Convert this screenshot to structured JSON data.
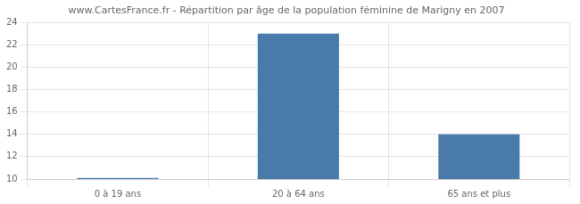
{
  "chart_data": {
    "type": "bar",
    "title": "www.CartesFrance.fr - Répartition par âge de la population féminine de Marigny en 2007",
    "categories": [
      "0 à 19 ans",
      "20 à 64 ans",
      "65 ans et plus"
    ],
    "values": [
      10.1,
      23,
      14
    ],
    "color": "#4a7aaa",
    "ylim": [
      10,
      24
    ],
    "yticks": [
      10,
      12,
      14,
      16,
      18,
      20,
      22,
      24
    ],
    "grid": true
  }
}
